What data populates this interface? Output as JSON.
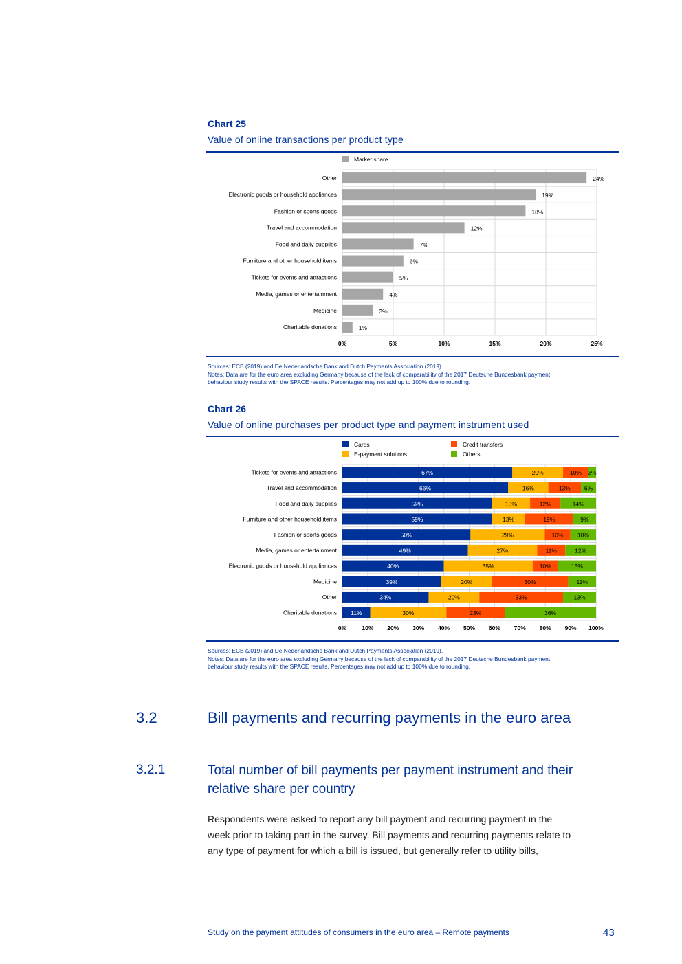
{
  "chart25": {
    "label": "Chart 25",
    "subtitle": "Value of online transactions per product type",
    "sources": "Sources: ECB (2019) and De Nederlandsche Bank and Dutch Payments Association (2019).",
    "notes_line1": "Notes: Data are for the euro area excluding Germany because of the lack of comparability of the 2017 Deutsche Bundesbank payment",
    "notes_line2": "behaviour study results with the SPACE results. Percentages may not add up to 100% due to rounding."
  },
  "chart26": {
    "label": "Chart 26",
    "subtitle": "Value of online purchases per product type and payment instrument used",
    "sources": "Sources: ECB (2019) and De Nederlandsche Bank and Dutch Payments Association (2019).",
    "notes_line1": "Notes: Data are for the euro area excluding Germany because of the lack of comparability of the 2017 Deutsche Bundesbank payment",
    "notes_line2": "behaviour study results with the SPACE results. Percentages may not add up to 100% due to rounding."
  },
  "chart_data": [
    {
      "type": "bar",
      "orientation": "horizontal",
      "series": [
        {
          "name": "Market share",
          "color": "#a6a6a6",
          "values": [
            24,
            19,
            18,
            12,
            7,
            6,
            5,
            4,
            3,
            1
          ]
        }
      ],
      "categories": [
        "Other",
        "Electronic goods or household appliances",
        "Fashion or sports goods",
        "Travel and accommodation",
        "Food and daily supplies",
        "Furniture and other household items",
        "Tickets for events and attractions",
        "Media, games or entertainment",
        "Medicine",
        "Charitable donations"
      ],
      "xlim": [
        0,
        25
      ],
      "ticks": [
        "0%",
        "5%",
        "10%",
        "15%",
        "20%",
        "25%"
      ],
      "value_suffix": "%",
      "grid": true,
      "legend": "top-left"
    },
    {
      "type": "bar",
      "orientation": "horizontal",
      "stacked": true,
      "categories": [
        "Tickets for events and attractions",
        "Travel and accommodation",
        "Food and daily supplies",
        "Furniture and other household items",
        "Fashion or sports goods",
        "Media, games or entertainment",
        "Electronic goods or household appliances",
        "Medicine",
        "Other",
        "Charitable donations"
      ],
      "series": [
        {
          "name": "Cards",
          "color": "#003299",
          "values": [
            67,
            66,
            59,
            59,
            50,
            49,
            40,
            39,
            34,
            11
          ]
        },
        {
          "name": "E-payment solutions",
          "color": "#ffb400",
          "values": [
            20,
            16,
            15,
            13,
            29,
            27,
            35,
            20,
            20,
            30
          ]
        },
        {
          "name": "Credit transfers",
          "color": "#ff4b00",
          "values": [
            10,
            13,
            12,
            19,
            10,
            11,
            10,
            30,
            33,
            23
          ]
        },
        {
          "name": "Others",
          "color": "#65b800",
          "values": [
            3,
            6,
            14,
            9,
            10,
            12,
            15,
            11,
            13,
            36
          ]
        }
      ],
      "xlim": [
        0,
        100
      ],
      "ticks": [
        "0%",
        "10%",
        "20%",
        "30%",
        "40%",
        "50%",
        "60%",
        "70%",
        "80%",
        "90%",
        "100%"
      ],
      "value_suffix": "%",
      "grid": true,
      "legend": "top"
    }
  ],
  "section": {
    "number": "3.2",
    "title": "Bill payments and recurring payments in the euro area"
  },
  "subsection": {
    "number": "3.2.1",
    "title_line1": "Total number of bill payments per payment instrument and their",
    "title_line2": "relative share per country"
  },
  "paragraph": {
    "line1": "Respondents were asked to report any bill payment and recurring payment in the",
    "line2": "week prior to taking part in the survey. Bill payments and recurring payments relate to",
    "line3": "any type of payment for which a bill is issued, but generally refer to utility bills,"
  },
  "footer": {
    "text": "Study on the payment attitudes of consumers in the euro area – Remote payments",
    "page": "43"
  }
}
